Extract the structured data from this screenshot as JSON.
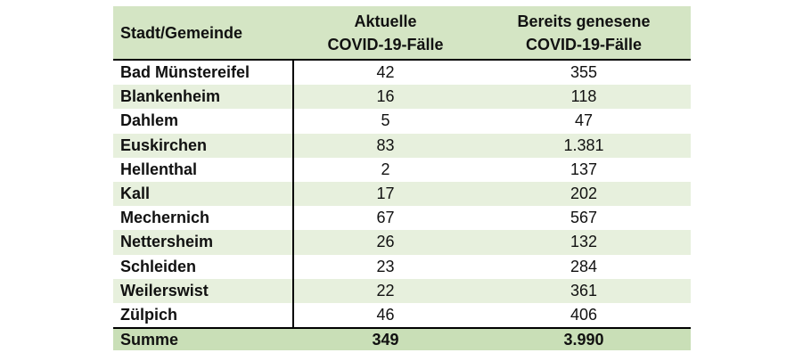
{
  "header": {
    "col1": "Stadt/Gemeinde",
    "col2_line1": "Aktuelle",
    "col2_line2": "COVID-19-Fälle",
    "col3_line1": "Bereits genesene",
    "col3_line2": "COVID-19-Fälle"
  },
  "rows": [
    {
      "name": "Bad Münstereifel",
      "current": "42",
      "recovered": "355"
    },
    {
      "name": "Blankenheim",
      "current": "16",
      "recovered": "118"
    },
    {
      "name": "Dahlem",
      "current": "5",
      "recovered": "47"
    },
    {
      "name": "Euskirchen",
      "current": "83",
      "recovered": "1.381"
    },
    {
      "name": "Hellenthal",
      "current": "2",
      "recovered": "137"
    },
    {
      "name": "Kall",
      "current": "17",
      "recovered": "202"
    },
    {
      "name": "Mechernich",
      "current": "67",
      "recovered": "567"
    },
    {
      "name": "Nettersheim",
      "current": "26",
      "recovered": "132"
    },
    {
      "name": "Schleiden",
      "current": "23",
      "recovered": "284"
    },
    {
      "name": "Weilerswist",
      "current": "22",
      "recovered": "361"
    },
    {
      "name": "Zülpich",
      "current": "46",
      "recovered": "406"
    }
  ],
  "total": {
    "label": "Summe",
    "current": "349",
    "recovered": "3.990"
  },
  "colors": {
    "header_bg": "#d4e5c4",
    "alt_row_bg": "#e7f0dd",
    "sum_bg": "#c9dfb7"
  }
}
